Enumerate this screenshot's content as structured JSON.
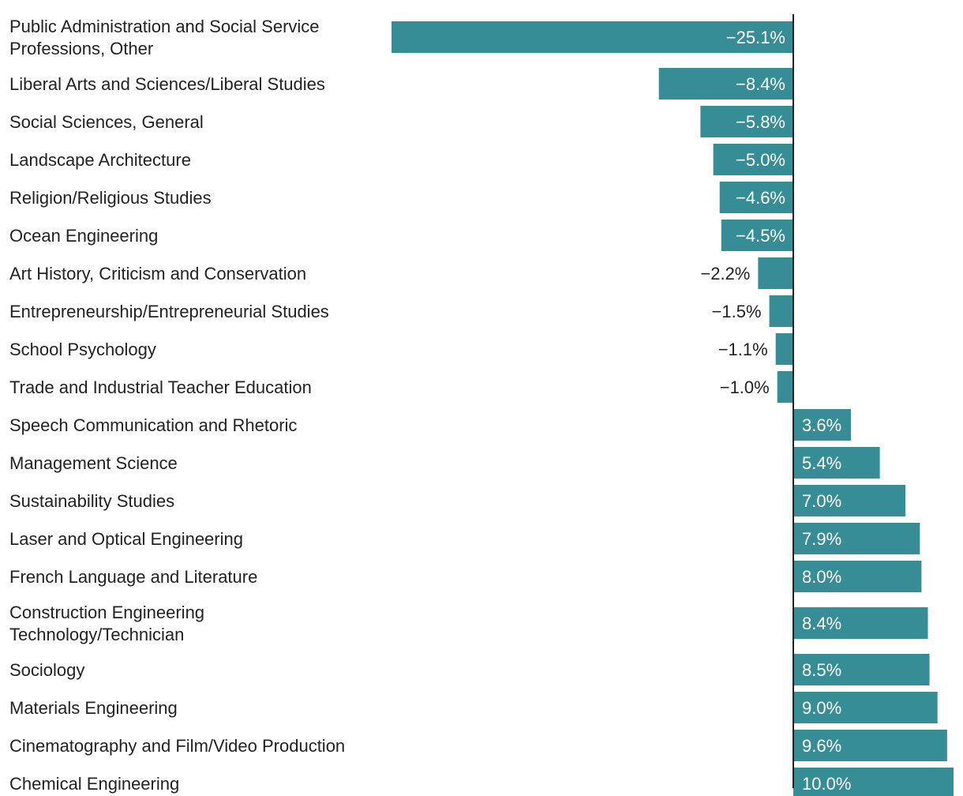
{
  "chart_data": {
    "type": "bar",
    "orientation": "horizontal",
    "title": "",
    "xlabel": "",
    "ylabel": "",
    "value_suffix": "%",
    "grid": false,
    "legend": "none",
    "xlim": [
      -25.1,
      10.0
    ],
    "bar_color": "#378d96",
    "axis_color": "#222222",
    "label_inside_color": "#ffffff",
    "label_outside_color": "#222222",
    "categories": [
      [
        "Public Administration and Social Service",
        "Professions, Other"
      ],
      [
        "Liberal Arts and Sciences/Liberal Studies"
      ],
      [
        "Social Sciences, General"
      ],
      [
        "Landscape Architecture"
      ],
      [
        "Religion/Religious Studies"
      ],
      [
        "Ocean Engineering"
      ],
      [
        "Art History, Criticism and Conservation"
      ],
      [
        "Entrepreneurship/Entrepreneurial Studies"
      ],
      [
        "School Psychology"
      ],
      [
        "Trade and Industrial Teacher Education"
      ],
      [
        "Speech Communication and Rhetoric"
      ],
      [
        "Management Science"
      ],
      [
        "Sustainability Studies"
      ],
      [
        "Laser and Optical Engineering"
      ],
      [
        "French Language and Literature"
      ],
      [
        "Construction Engineering",
        "Technology/Technician"
      ],
      [
        "Sociology"
      ],
      [
        "Materials Engineering"
      ],
      [
        "Cinematography and Film/Video Production"
      ],
      [
        "Chemical Engineering"
      ]
    ],
    "values": [
      -25.1,
      -8.4,
      -5.8,
      -5.0,
      -4.6,
      -4.5,
      -2.2,
      -1.5,
      -1.1,
      -1.0,
      3.6,
      5.4,
      7.0,
      7.9,
      8.0,
      8.4,
      8.5,
      9.0,
      9.6,
      10.0
    ],
    "value_labels": [
      "−25.1%",
      "−8.4%",
      "−5.8%",
      "−5.0%",
      "−4.6%",
      "−4.5%",
      "−2.2%",
      "−1.5%",
      "−1.1%",
      "−1.0%",
      "3.6%",
      "5.4%",
      "7.0%",
      "7.9%",
      "8.0%",
      "8.4%",
      "8.5%",
      "9.0%",
      "9.6%",
      "10.0%"
    ]
  }
}
